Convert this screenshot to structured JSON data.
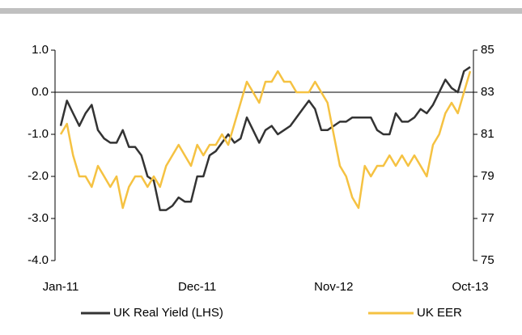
{
  "chart_data": {
    "type": "line",
    "categories": [
      "Jan-11",
      null,
      null,
      null,
      null,
      null,
      null,
      null,
      null,
      null,
      null,
      null,
      null,
      null,
      null,
      null,
      null,
      null,
      null,
      null,
      null,
      null,
      "Dec-11",
      null,
      null,
      null,
      null,
      null,
      null,
      null,
      null,
      null,
      null,
      null,
      null,
      null,
      null,
      null,
      null,
      null,
      null,
      null,
      null,
      null,
      "Nov-12",
      null,
      null,
      null,
      null,
      null,
      null,
      null,
      null,
      null,
      null,
      null,
      null,
      null,
      null,
      null,
      null,
      null,
      null,
      null,
      null,
      null,
      "Oct-13"
    ],
    "series": [
      {
        "name": "UK Real Yield (LHS)",
        "color": "#333333",
        "axis": "y",
        "values": [
          -0.8,
          -0.2,
          -0.5,
          -0.8,
          -0.5,
          -0.3,
          -0.9,
          -1.1,
          -1.2,
          -1.2,
          -0.9,
          -1.3,
          -1.3,
          -1.5,
          -2.0,
          -2.1,
          -2.8,
          -2.8,
          -2.7,
          -2.5,
          -2.6,
          -2.6,
          -2.0,
          -2.0,
          -1.5,
          -1.4,
          -1.2,
          -1.0,
          -1.2,
          -1.1,
          -0.6,
          -0.9,
          -1.2,
          -0.9,
          -0.8,
          -1.0,
          -0.9,
          -0.8,
          -0.6,
          -0.4,
          -0.2,
          -0.4,
          -0.9,
          -0.9,
          -0.8,
          -0.7,
          -0.7,
          -0.6,
          -0.6,
          -0.6,
          -0.6,
          -0.9,
          -1.0,
          -1.0,
          -0.5,
          -0.7,
          -0.7,
          -0.6,
          -0.4,
          -0.5,
          -0.3,
          0.0,
          0.3,
          0.1,
          0.0,
          0.5,
          0.6
        ]
      },
      {
        "name": "UK EER",
        "color": "#f5c242",
        "axis": "y2",
        "values": [
          81.0,
          81.5,
          80.0,
          79.0,
          79.0,
          78.5,
          79.5,
          79.0,
          78.5,
          79.0,
          77.5,
          78.5,
          79.0,
          79.0,
          78.5,
          79.0,
          78.5,
          79.5,
          80.0,
          80.5,
          80.0,
          79.5,
          80.5,
          80.0,
          80.5,
          80.5,
          81.0,
          80.5,
          81.5,
          82.5,
          83.5,
          83.0,
          82.5,
          83.5,
          83.5,
          84.0,
          83.5,
          83.5,
          83.0,
          83.0,
          83.0,
          83.5,
          83.0,
          82.5,
          81.0,
          79.5,
          79.0,
          78.0,
          77.5,
          79.5,
          79.0,
          79.5,
          79.5,
          80.0,
          79.5,
          80.0,
          79.5,
          80.0,
          79.5,
          79.0,
          80.5,
          81.0,
          82.0,
          82.5,
          82.0,
          83.0,
          84.0
        ]
      }
    ],
    "ylim": [
      -4,
      1
    ],
    "yticks": [
      {
        "value": -4,
        "label": "-4.0"
      },
      {
        "value": -3,
        "label": "-3.0"
      },
      {
        "value": -2,
        "label": "-2.0"
      },
      {
        "value": -1,
        "label": "-1.0"
      },
      {
        "value": 0,
        "label": "0.0"
      },
      {
        "value": 1,
        "label": "1.0"
      }
    ],
    "y2lim": [
      75,
      85
    ],
    "y2ticks": [
      75,
      77,
      79,
      81,
      83,
      85
    ],
    "legend": "bottom"
  }
}
